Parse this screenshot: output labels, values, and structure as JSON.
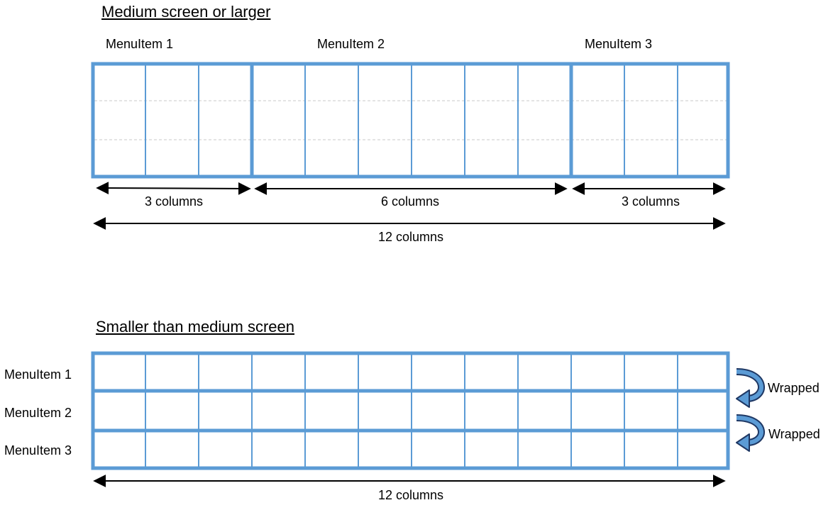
{
  "top_section": {
    "title": "Medium screen or larger",
    "menu_items": [
      "MenuItem 1",
      "MenuItem 2",
      "MenuItem 3"
    ],
    "spans": [
      {
        "label": "3 columns",
        "columns": 3
      },
      {
        "label": "6 columns",
        "columns": 6
      },
      {
        "label": "3 columns",
        "columns": 3
      }
    ],
    "total_label": "12 columns"
  },
  "bottom_section": {
    "title": "Smaller than medium screen",
    "row_labels": [
      "MenuItem 1",
      "MenuItem 2",
      "MenuItem 3"
    ],
    "wrap_labels": [
      "Wrapped",
      "Wrapped"
    ],
    "total_label": "12 columns"
  },
  "grid": {
    "columns": 12
  },
  "colors": {
    "accent": "#5b9bd5",
    "guide": "#c8c8c8",
    "arrow": "#000000",
    "wrap_outline": "#1f3864"
  }
}
